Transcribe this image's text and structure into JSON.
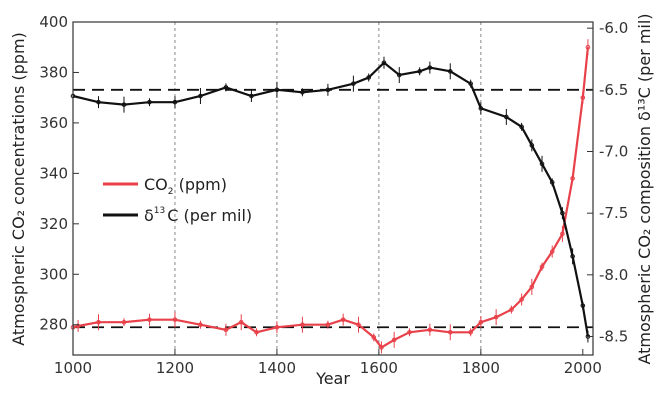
{
  "chart_data": {
    "type": "line",
    "xlabel": "Year",
    "ylabel_left": "Atmospheric CO₂ concentrations (ppm)",
    "ylabel_right": "Atmospheric CO₂ composition δ¹³C (per mil)",
    "xlim": [
      1000,
      2020
    ],
    "ylim_left": [
      268,
      400
    ],
    "ylim_right": [
      -8.65,
      -5.95
    ],
    "x_ticks": [
      1000,
      1200,
      1400,
      1600,
      1800,
      2000
    ],
    "x_tick_labels": [
      "1000",
      "1200",
      "1400",
      "1600",
      "1800",
      "2000"
    ],
    "y_left_ticks": [
      280,
      300,
      320,
      340,
      360,
      380,
      400
    ],
    "y_left_tick_labels": [
      "280",
      "300",
      "320",
      "340",
      "360",
      "380",
      "400"
    ],
    "y_right_ticks": [
      -8.5,
      -8.0,
      -7.5,
      -7.0,
      -6.5,
      -6.0
    ],
    "y_right_tick_labels": [
      "-8.5",
      "-8.0",
      "-7.5",
      "-7.0",
      "-6.5",
      "-6.0"
    ],
    "grid": "vertical dashed",
    "legend_position": "left-middle",
    "reference_lines": [
      {
        "axis": "left",
        "value": 279
      },
      {
        "axis": "right",
        "value": -6.5
      }
    ],
    "series": [
      {
        "name": "CO₂ (ppm)",
        "legend_main": "CO",
        "legend_sub": "2",
        "legend_suffix": " (ppm)",
        "axis": "left",
        "color": "#e8414a",
        "x": [
          1000,
          1010,
          1050,
          1100,
          1150,
          1200,
          1250,
          1300,
          1330,
          1360,
          1400,
          1450,
          1500,
          1530,
          1560,
          1590,
          1605,
          1630,
          1660,
          1700,
          1740,
          1780,
          1800,
          1830,
          1860,
          1880,
          1900,
          1920,
          1940,
          1960,
          1980,
          2000,
          2010
        ],
        "y": [
          279,
          279.5,
          281,
          281,
          282,
          282,
          280,
          278,
          281,
          277,
          279,
          280,
          280,
          282,
          280,
          275,
          271,
          274,
          277,
          278,
          277,
          277,
          281,
          283,
          286,
          290,
          295,
          303,
          309,
          316,
          338,
          370,
          390
        ]
      },
      {
        "name": "δ¹³C (per mil)",
        "legend_main": "δ",
        "legend_sub": "13",
        "legend_suffix": "C (per mil)",
        "axis": "right",
        "color": "#111111",
        "x": [
          1000,
          1050,
          1100,
          1150,
          1200,
          1250,
          1300,
          1350,
          1400,
          1450,
          1500,
          1550,
          1580,
          1610,
          1640,
          1680,
          1700,
          1740,
          1780,
          1800,
          1850,
          1880,
          1900,
          1920,
          1940,
          1960,
          1980,
          2000,
          2010
        ],
        "y": [
          -6.55,
          -6.6,
          -6.62,
          -6.6,
          -6.6,
          -6.55,
          -6.48,
          -6.55,
          -6.5,
          -6.52,
          -6.5,
          -6.45,
          -6.4,
          -6.28,
          -6.38,
          -6.35,
          -6.32,
          -6.35,
          -6.45,
          -6.65,
          -6.72,
          -6.8,
          -6.95,
          -7.1,
          -7.25,
          -7.5,
          -7.85,
          -8.25,
          -8.5
        ]
      }
    ]
  }
}
